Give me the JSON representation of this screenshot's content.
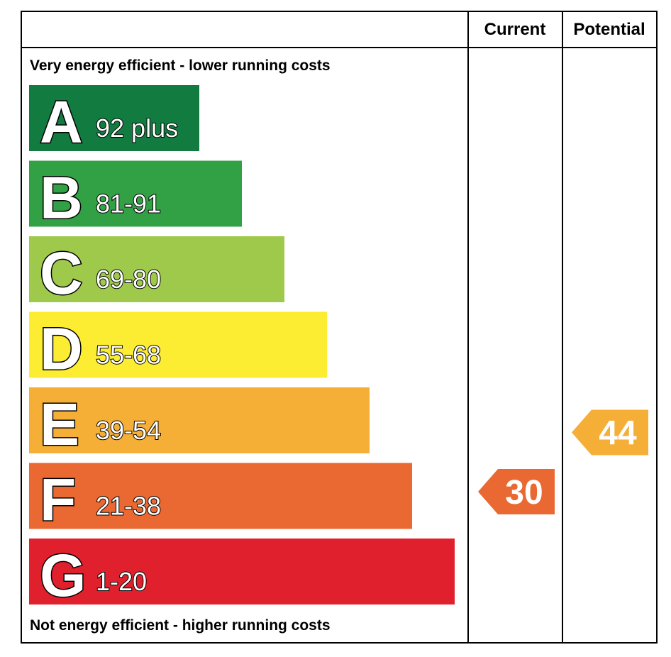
{
  "chart_data": {
    "type": "bar",
    "header": {
      "current": "Current",
      "potential": "Potential"
    },
    "top_caption": "Very energy efficient - lower running costs",
    "bottom_caption": "Not energy efficient - higher running costs",
    "bands": [
      {
        "letter": "A",
        "range": "92 plus",
        "color": "#127b40"
      },
      {
        "letter": "B",
        "range": "81-91",
        "color": "#32a045"
      },
      {
        "letter": "C",
        "range": "69-80",
        "color": "#9ec94a"
      },
      {
        "letter": "D",
        "range": "55-68",
        "color": "#fded32"
      },
      {
        "letter": "E",
        "range": "39-54",
        "color": "#f5ae36"
      },
      {
        "letter": "F",
        "range": "21-38",
        "color": "#ea6932"
      },
      {
        "letter": "G",
        "range": "1-20",
        "color": "#e1202d"
      }
    ],
    "current": {
      "value": 30,
      "band": "F",
      "color": "#ea6932"
    },
    "potential": {
      "value": 44,
      "band": "E",
      "color": "#f5ae36"
    }
  }
}
